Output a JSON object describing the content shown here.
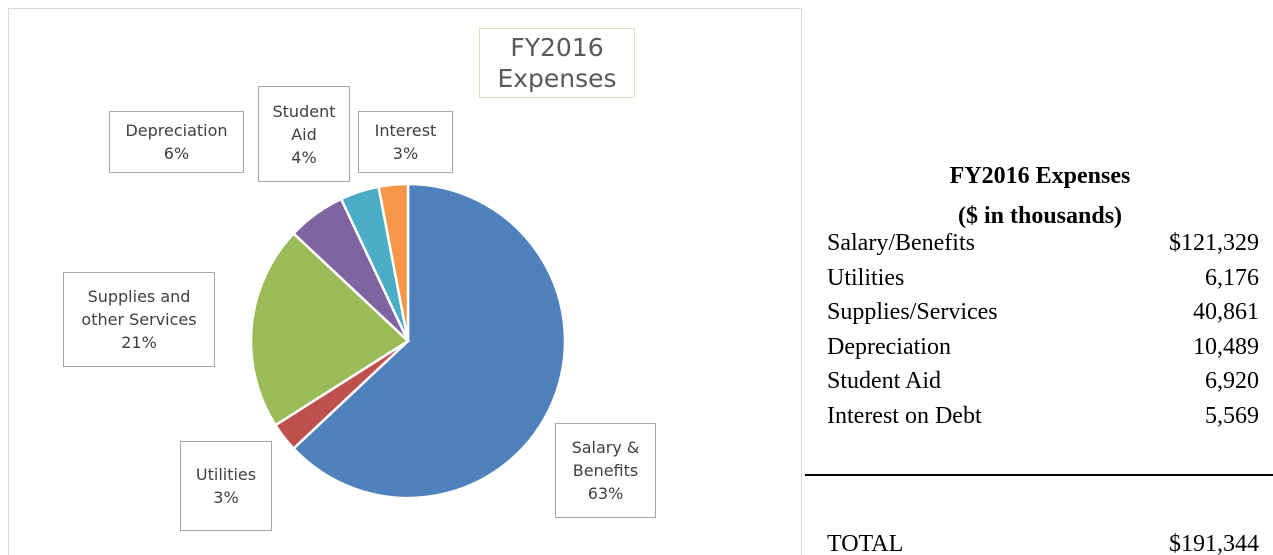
{
  "chart_data": {
    "type": "pie",
    "title": "FY2016 Expenses",
    "categories": [
      "Salary & Benefits",
      "Utilities",
      "Supplies and other Services",
      "Depreciation",
      "Student Aid",
      "Interest"
    ],
    "values": [
      63,
      3,
      21,
      6,
      4,
      3
    ],
    "value_labels": [
      "63%",
      "3%",
      "21%",
      "6%",
      "4%",
      "3%"
    ],
    "colors": [
      "#4f81bd",
      "#c0504d",
      "#9bbb59",
      "#8064a2",
      "#4bacc6",
      "#f79646"
    ]
  },
  "table": {
    "title": "FY2016 Expenses",
    "subtitle": "($ in thousands)",
    "rows": [
      [
        "Salary/Benefits",
        "$121,329"
      ],
      [
        "Utilities",
        "6,176"
      ],
      [
        "Supplies/Services",
        "40,861"
      ],
      [
        "Depreciation",
        "10,489"
      ],
      [
        "Student Aid",
        "6,920"
      ],
      [
        "Interest on Debt",
        "5,569"
      ]
    ],
    "total": [
      "TOTAL",
      "$191,344"
    ]
  }
}
